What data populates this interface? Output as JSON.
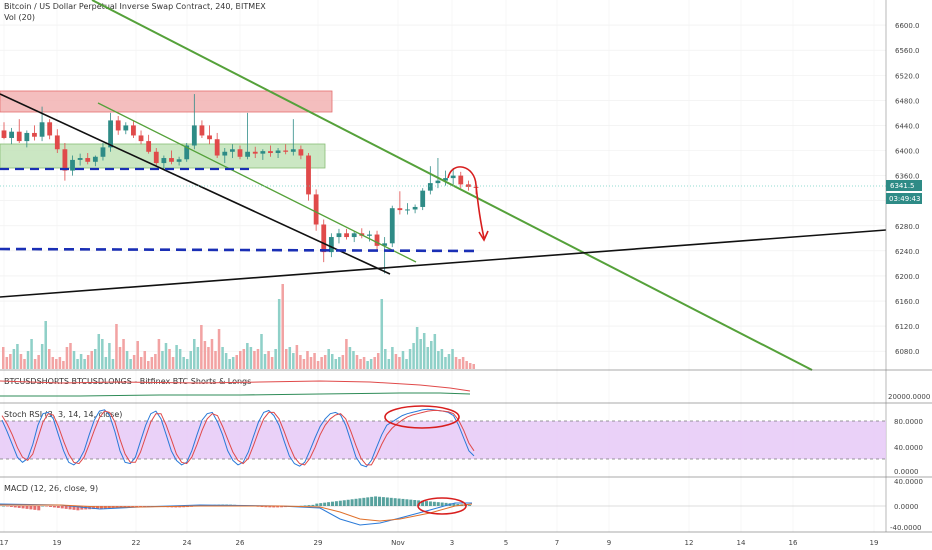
{
  "header": {
    "title": "Bitcoin / US Dollar Perpetual Inverse Swap Contract, 240, BITMEX",
    "volume_label": "Vol (20)"
  },
  "colors": {
    "up": "#2e8b86",
    "down": "#e04a4a",
    "vol_up": "#8fd0c8",
    "vol_down": "#f2a3a3",
    "trend_green": "#55a13a",
    "trend_black": "#111111",
    "level_blue": "#1a2fb5",
    "zone_red": "#f3b3b3",
    "zone_green": "#c3e3b9",
    "annot_red": "#d81e1e",
    "rsi_band": "#e6c9f7"
  },
  "chart_data": [
    {
      "type": "candlestick",
      "title": "Bitcoin / US Dollar Perpetual Inverse Swap Contract, 240, BITMEX",
      "x_tick_labels": [
        "17",
        "19",
        "22",
        "24",
        "26",
        "29",
        "Nov",
        "3",
        "5",
        "7",
        "9",
        "12",
        "14",
        "16",
        "19"
      ],
      "ylim": [
        6050,
        6640
      ],
      "y_tick_labels": [
        "6600.0",
        "6560.0",
        "6520.0",
        "6480.0",
        "6440.0",
        "6400.0",
        "6360.0",
        "6320.0",
        "6280.0",
        "6240.0",
        "6200.0",
        "6160.0",
        "6120.0",
        "6080.0"
      ],
      "last_price": "6341.5",
      "countdown": "03:49:43",
      "candles_ohlc": [
        [
          6432,
          6445,
          6418,
          6420
        ],
        [
          6420,
          6436,
          6410,
          6430
        ],
        [
          6430,
          6450,
          6412,
          6415
        ],
        [
          6415,
          6432,
          6405,
          6428
        ],
        [
          6428,
          6440,
          6416,
          6422
        ],
        [
          6422,
          6470,
          6415,
          6445
        ],
        [
          6445,
          6450,
          6418,
          6424
        ],
        [
          6424,
          6434,
          6396,
          6402
        ],
        [
          6402,
          6412,
          6352,
          6368
        ],
        [
          6368,
          6392,
          6360,
          6385
        ],
        [
          6385,
          6395,
          6376,
          6388
        ],
        [
          6388,
          6396,
          6378,
          6382
        ],
        [
          6382,
          6392,
          6375,
          6390
        ],
        [
          6390,
          6412,
          6384,
          6405
        ],
        [
          6405,
          6460,
          6398,
          6448
        ],
        [
          6448,
          6455,
          6425,
          6432
        ],
        [
          6432,
          6445,
          6426,
          6440
        ],
        [
          6440,
          6448,
          6420,
          6424
        ],
        [
          6424,
          6432,
          6410,
          6415
        ],
        [
          6415,
          6425,
          6395,
          6398
        ],
        [
          6398,
          6404,
          6375,
          6380
        ],
        [
          6380,
          6392,
          6370,
          6388
        ],
        [
          6388,
          6400,
          6378,
          6382
        ],
        [
          6382,
          6390,
          6376,
          6386
        ],
        [
          6386,
          6412,
          6382,
          6408
        ],
        [
          6408,
          6490,
          6402,
          6440
        ],
        [
          6440,
          6448,
          6420,
          6424
        ],
        [
          6424,
          6440,
          6410,
          6418
        ],
        [
          6418,
          6428,
          6388,
          6392
        ],
        [
          6392,
          6404,
          6380,
          6398
        ],
        [
          6398,
          6410,
          6388,
          6402
        ],
        [
          6402,
          6408,
          6386,
          6390
        ],
        [
          6390,
          6460,
          6386,
          6398
        ],
        [
          6398,
          6406,
          6388,
          6395
        ],
        [
          6395,
          6402,
          6385,
          6399
        ],
        [
          6399,
          6408,
          6390,
          6396
        ],
        [
          6396,
          6404,
          6388,
          6400
        ],
        [
          6400,
          6410,
          6394,
          6398
        ],
        [
          6398,
          6450,
          6392,
          6402
        ],
        [
          6402,
          6408,
          6386,
          6392
        ],
        [
          6392,
          6396,
          6320,
          6330
        ],
        [
          6330,
          6338,
          6272,
          6282
        ],
        [
          6282,
          6290,
          6222,
          6238
        ],
        [
          6238,
          6268,
          6230,
          6262
        ],
        [
          6262,
          6275,
          6252,
          6268
        ],
        [
          6268,
          6275,
          6258,
          6262
        ],
        [
          6262,
          6272,
          6254,
          6268
        ],
        [
          6268,
          6276,
          6260,
          6264
        ],
        [
          6264,
          6272,
          6255,
          6266
        ],
        [
          6266,
          6272,
          6240,
          6248
        ],
        [
          6248,
          6262,
          6204,
          6252
        ],
        [
          6252,
          6312,
          6246,
          6308
        ],
        [
          6308,
          6335,
          6298,
          6305
        ],
        [
          6305,
          6316,
          6298,
          6306
        ],
        [
          6306,
          6314,
          6300,
          6310
        ],
        [
          6310,
          6340,
          6305,
          6336
        ],
        [
          6336,
          6375,
          6330,
          6348
        ],
        [
          6348,
          6388,
          6340,
          6352
        ],
        [
          6352,
          6368,
          6344,
          6356
        ],
        [
          6356,
          6372,
          6346,
          6360
        ],
        [
          6360,
          6366,
          6340,
          6346
        ],
        [
          6346,
          6352,
          6336,
          6342
        ],
        [
          6342,
          6348,
          6330,
          6341
        ]
      ],
      "volumes": [
        22,
        12,
        15,
        20,
        25,
        15,
        10,
        18,
        30,
        10,
        14,
        25,
        48,
        20,
        12,
        10,
        12,
        8,
        22,
        26,
        18,
        10,
        15,
        10,
        14,
        18,
        20,
        35,
        30,
        12,
        26,
        10,
        45,
        22,
        30,
        18,
        10,
        14,
        28,
        12,
        18,
        8,
        12,
        15,
        30,
        18,
        26,
        20,
        12,
        24,
        20,
        12,
        10,
        18,
        30,
        22,
        44,
        28,
        22,
        30,
        18,
        40,
        22,
        16,
        10,
        12,
        14,
        18,
        20,
        26,
        22,
        18,
        20,
        35,
        15,
        18,
        12,
        20,
        70,
        85,
        20,
        22,
        16,
        24,
        14,
        10,
        18,
        12,
        16,
        8,
        12,
        14,
        20,
        15,
        10,
        12,
        14,
        30,
        22,
        18,
        14,
        10,
        12,
        8,
        10,
        12,
        16,
        70,
        20,
        10,
        22,
        15,
        12,
        18,
        10,
        20,
        26,
        42,
        30,
        36,
        22,
        28,
        35,
        18,
        20,
        12,
        15,
        20,
        12,
        10,
        12,
        8,
        6,
        5
      ],
      "annotations": [
        "6200.0",
        "6160.0",
        "6120.0"
      ]
    },
    {
      "type": "line",
      "title": "BTCUSDSHORTS BTCUSDLONGS - Bitfinex BTC Shorts & Longs",
      "y_tick_labels": [
        "20000.0000"
      ]
    },
    {
      "type": "line",
      "title": "Stoch RSI (3, 3, 14, 14, close)",
      "ylim": [
        0,
        100
      ],
      "y_tick_labels": [
        "80.0000",
        "40.0000",
        "0.0000"
      ],
      "series": [
        {
          "name": "K",
          "values": [
            78,
            60,
            40,
            20,
            12,
            18,
            40,
            70,
            88,
            90,
            80,
            55,
            30,
            12,
            8,
            15,
            30,
            55,
            78,
            92,
            94,
            85,
            60,
            30,
            12,
            10,
            20,
            45,
            70,
            88,
            92,
            80,
            55,
            30,
            15,
            8,
            12,
            30,
            55,
            78,
            88,
            90,
            75,
            55,
            30,
            15,
            8,
            12,
            28,
            52,
            75,
            90,
            93,
            85,
            70,
            45,
            22,
            10,
            6,
            12,
            30,
            50,
            68,
            80,
            88,
            90,
            86,
            70,
            45,
            20,
            8,
            5,
            15,
            35,
            55,
            70,
            75,
            80,
            85,
            88,
            90,
            92,
            94,
            95,
            94,
            93,
            92,
            90,
            85,
            70,
            50,
            30,
            22
          ]
        },
        {
          "name": "D",
          "values": [
            85,
            72,
            55,
            35,
            20,
            15,
            25,
            50,
            75,
            88,
            86,
            68,
            45,
            25,
            12,
            10,
            20,
            40,
            62,
            82,
            92,
            90,
            75,
            48,
            25,
            12,
            12,
            28,
            52,
            75,
            88,
            88,
            70,
            48,
            25,
            12,
            10,
            20,
            40,
            62,
            80,
            88,
            85,
            68,
            48,
            28,
            15,
            10,
            18,
            38,
            60,
            80,
            90,
            90,
            80,
            60,
            38,
            20,
            10,
            8,
            18,
            35,
            55,
            70,
            80,
            86,
            88,
            80,
            60,
            38,
            18,
            8,
            8,
            22,
            40,
            55,
            65,
            72,
            78,
            83,
            86,
            88,
            90,
            92,
            93,
            93,
            92,
            91,
            88,
            78,
            62,
            42,
            30
          ]
        }
      ]
    },
    {
      "type": "bar",
      "title": "MACD (12, 26, close, 9)",
      "ylim": [
        -40,
        40
      ],
      "y_tick_labels": [
        "40.0000",
        "0.0000",
        "-40.0000"
      ]
    }
  ]
}
